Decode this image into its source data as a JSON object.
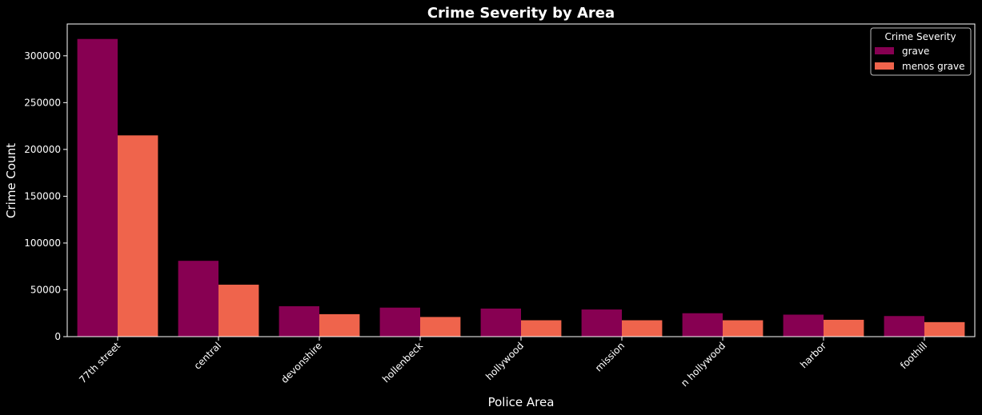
{
  "chart_data": {
    "type": "bar",
    "title": "Crime Severity by Area",
    "xlabel": "Police Area",
    "ylabel": "Crime Count",
    "categories": [
      "77th street",
      "central",
      "devonshire",
      "hollenbeck",
      "hollywood",
      "mission",
      "n hollywood",
      "harbor",
      "foothill"
    ],
    "series": [
      {
        "name": "grave",
        "color": "#870052",
        "values": [
          318000,
          81000,
          32500,
          31000,
          30000,
          29000,
          25000,
          23500,
          22000
        ]
      },
      {
        "name": "menos grave",
        "color": "#ef644c",
        "values": [
          215000,
          55500,
          24000,
          21000,
          17500,
          17500,
          17500,
          18000,
          15500
        ]
      }
    ],
    "ylim": [
      0,
      334000
    ],
    "yticks": [
      0,
      50000,
      100000,
      150000,
      200000,
      250000,
      300000
    ],
    "legend": {
      "title": "Crime Severity",
      "position": "top-right"
    },
    "grid": false,
    "background": "#000000",
    "foreground": "#ffffff"
  }
}
